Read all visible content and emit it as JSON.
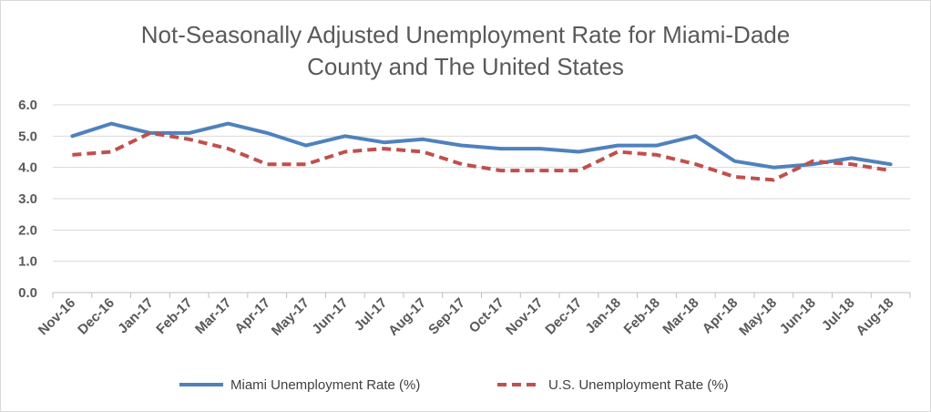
{
  "chart_data": {
    "type": "line",
    "title": "Not-Seasonally Adjusted Unemployment Rate for Miami-Dade County and The United States",
    "title_lines": [
      "Not-Seasonally Adjusted Unemployment Rate for Miami-Dade",
      "County and The United States"
    ],
    "xlabel": "",
    "ylabel": "",
    "ylim": [
      0,
      6
    ],
    "yticks": [
      "0.0",
      "1.0",
      "2.0",
      "3.0",
      "4.0",
      "5.0",
      "6.0"
    ],
    "grid": true,
    "legend_position": "bottom",
    "categories": [
      "Nov-16",
      "Dec-16",
      "Jan-17",
      "Feb-17",
      "Mar-17",
      "Apr-17",
      "May-17",
      "Jun-17",
      "Jul-17",
      "Aug-17",
      "Sep-17",
      "Oct-17",
      "Nov-17",
      "Dec-17",
      "Jan-18",
      "Feb-18",
      "Mar-18",
      "Apr-18",
      "May-18",
      "Jun-18",
      "Jul-18",
      "Aug-18"
    ],
    "series": [
      {
        "name": "Miami Unemployment Rate (%)",
        "color": "#4f81bd",
        "style": "solid",
        "values": [
          5.0,
          5.4,
          5.1,
          5.1,
          5.4,
          5.1,
          4.7,
          5.0,
          4.8,
          4.9,
          4.7,
          4.6,
          4.6,
          4.5,
          4.7,
          4.7,
          5.0,
          4.2,
          4.0,
          4.1,
          4.3,
          4.1
        ]
      },
      {
        "name": "U.S. Unemployment Rate (%)",
        "color": "#c0504d",
        "style": "dashed",
        "values": [
          4.4,
          4.5,
          5.1,
          4.9,
          4.6,
          4.1,
          4.1,
          4.5,
          4.6,
          4.5,
          4.1,
          3.9,
          3.9,
          3.9,
          4.5,
          4.4,
          4.1,
          3.7,
          3.6,
          4.2,
          4.1,
          3.9
        ]
      }
    ]
  }
}
